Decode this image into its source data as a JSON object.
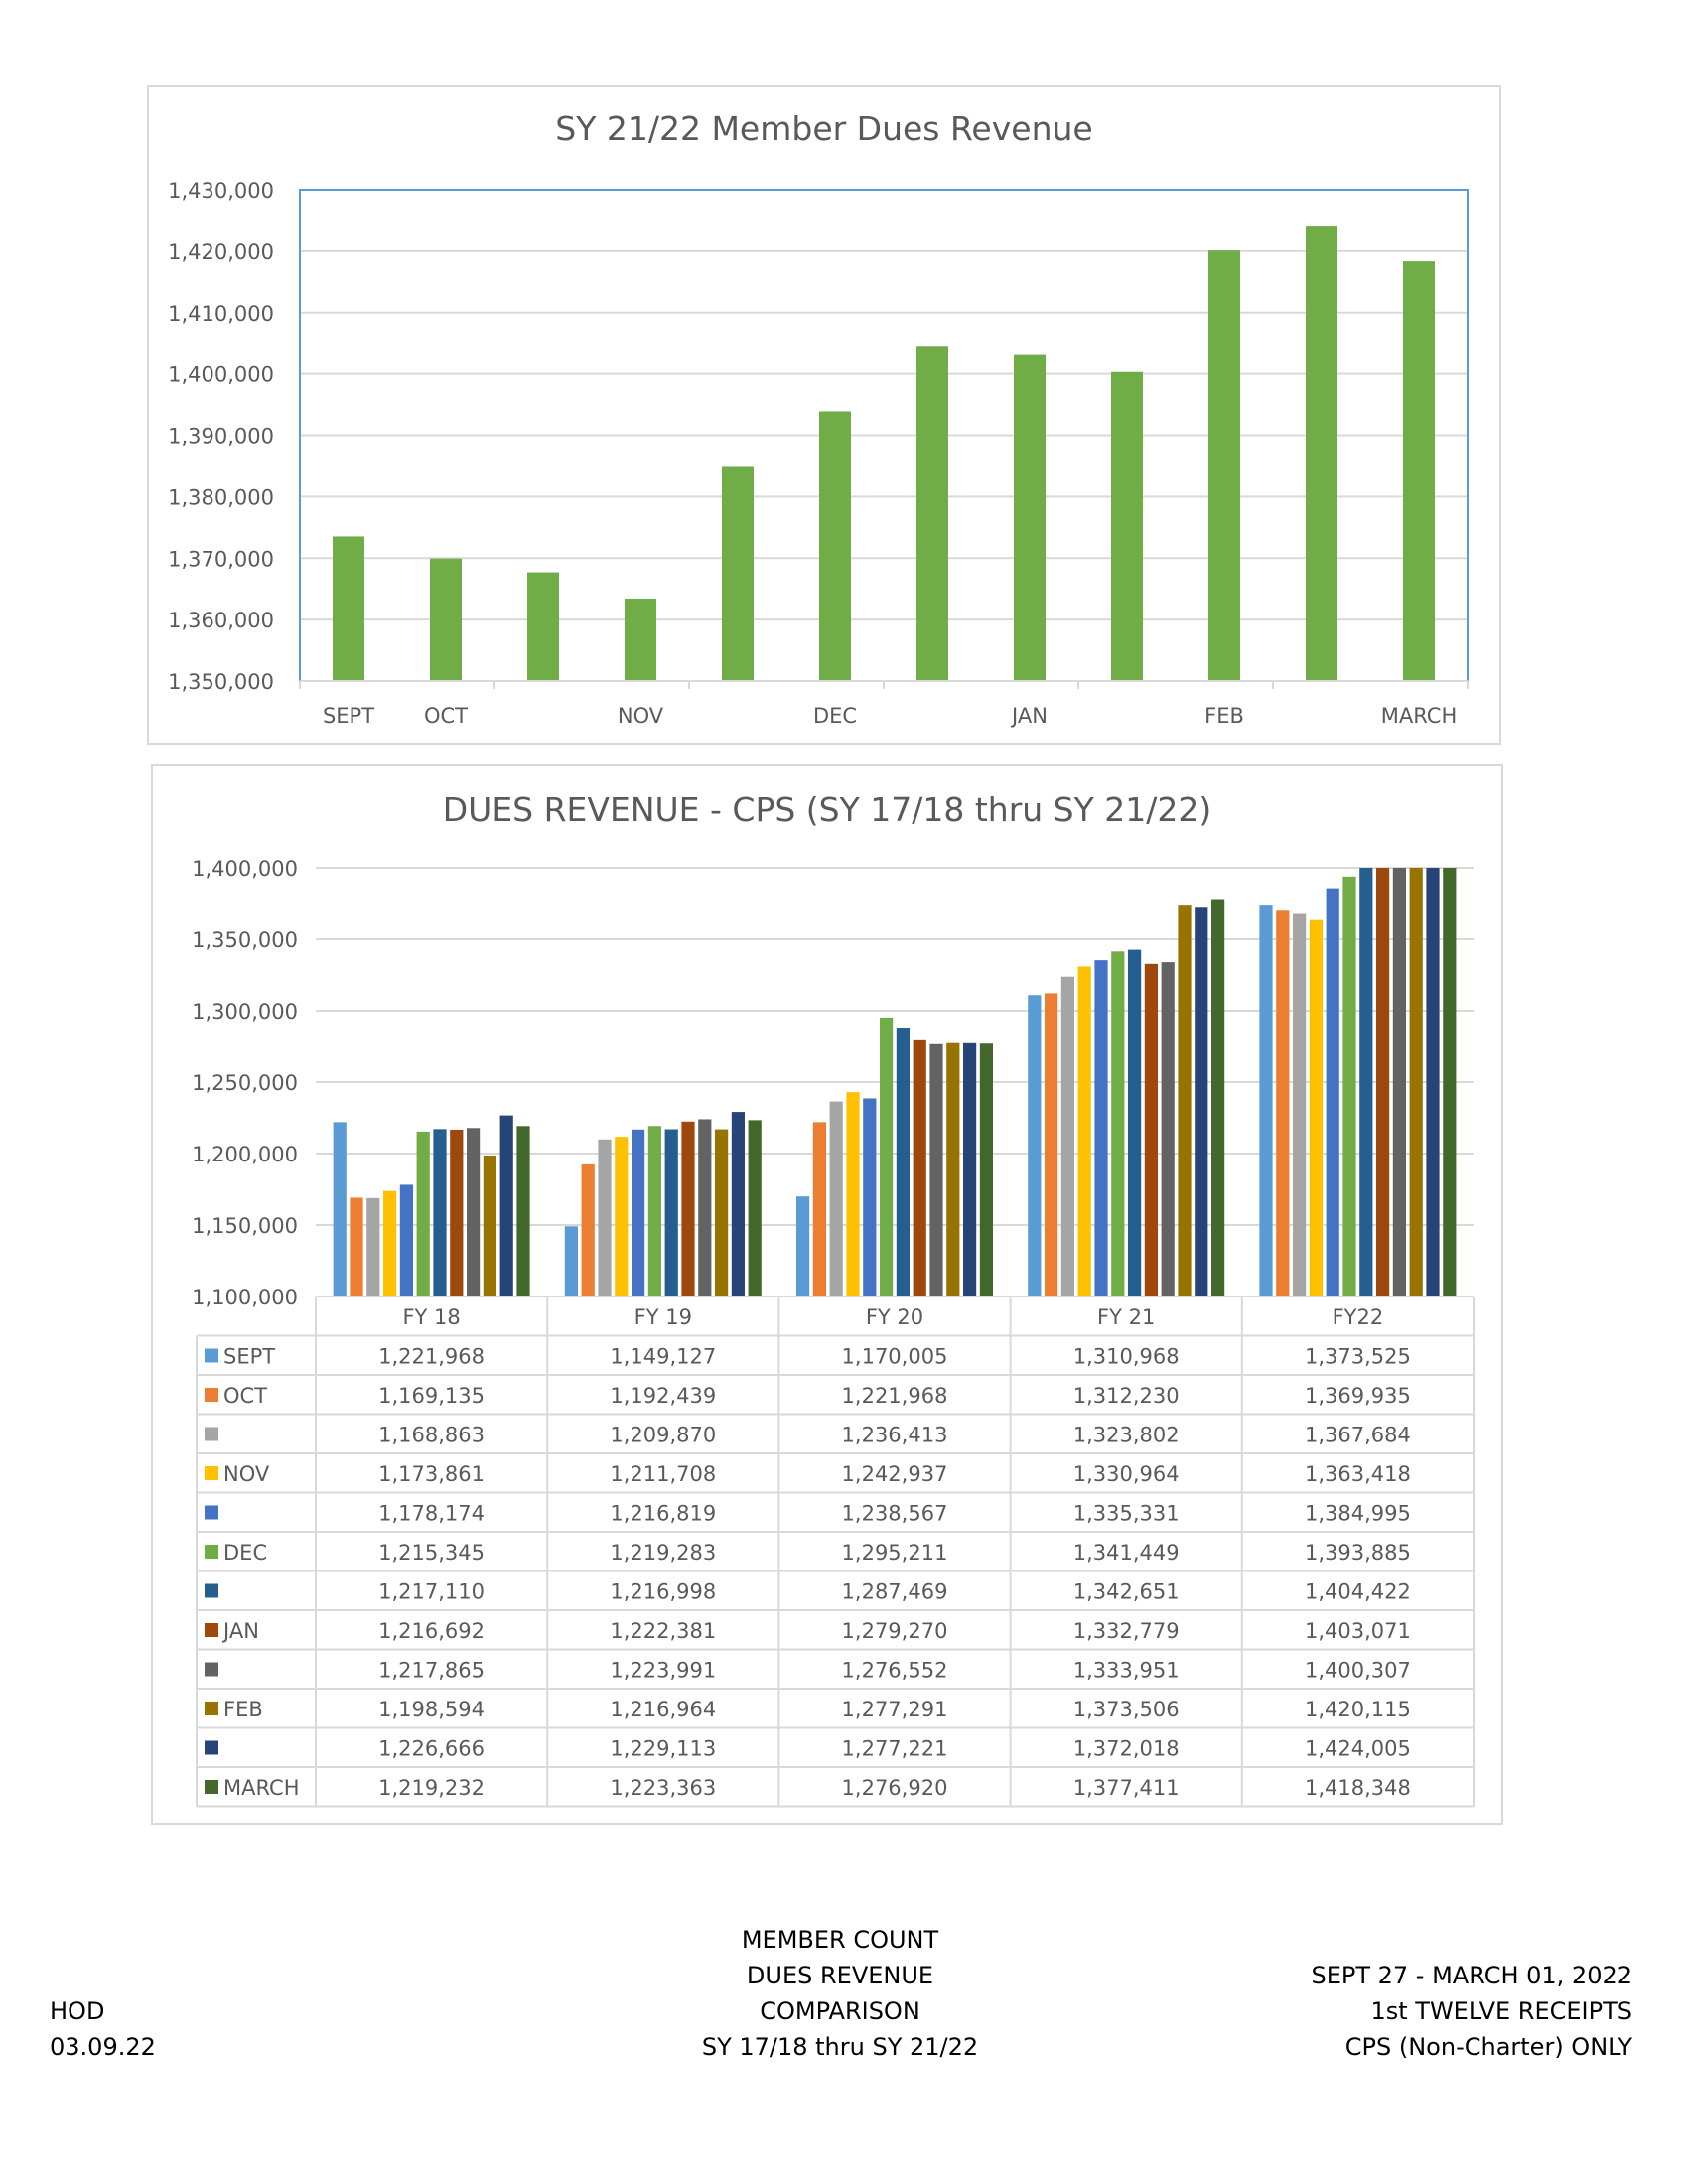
{
  "chart_data": [
    {
      "type": "bar",
      "title": "SY 21/22 Member Dues Revenue",
      "categories": [
        "SEPT",
        "OCT",
        "",
        "NOV",
        "",
        "DEC",
        "",
        "JAN",
        "",
        "FEB",
        "",
        "MARCH"
      ],
      "values": [
        1373525,
        1369935,
        1367684,
        1363418,
        1384995,
        1393885,
        1404422,
        1403071,
        1400307,
        1420115,
        1424005,
        1418348
      ],
      "ylim": [
        1350000,
        1430000
      ],
      "yticks": [
        "1,350,000",
        "1,360,000",
        "1,370,000",
        "1,380,000",
        "1,390,000",
        "1,400,000",
        "1,410,000",
        "1,420,000",
        "1,430,000"
      ],
      "xlabel": "",
      "ylabel": "",
      "bar_color": "#70ad47",
      "grid": true
    },
    {
      "type": "bar",
      "title": "DUES REVENUE - CPS (SY 17/18 thru SY 21/22)",
      "categories": [
        "FY 18",
        "FY 19",
        "FY 20",
        "FY 21",
        "FY22"
      ],
      "ylim": [
        1100000,
        1400000
      ],
      "yticks": [
        "1,100,000",
        "1,150,000",
        "1,200,000",
        "1,250,000",
        "1,300,000",
        "1,350,000",
        "1,400,000"
      ],
      "grid": true,
      "legend_placement": "data-table-left",
      "series": [
        {
          "name": "SEPT",
          "color": "#5b9bd5",
          "values": [
            1221968,
            1149127,
            1170005,
            1310968,
            1373525
          ],
          "labels": [
            "1,221,968",
            "1,149,127",
            "1,170,005",
            "1,310,968",
            "1,373,525"
          ]
        },
        {
          "name": "OCT",
          "color": "#ed7d31",
          "values": [
            1169135,
            1192439,
            1221968,
            1312230,
            1369935
          ],
          "labels": [
            "1,169,135",
            "1,192,439",
            "1,221,968",
            "1,312,230",
            "1,369,935"
          ]
        },
        {
          "name": "",
          "color": "#a5a5a5",
          "values": [
            1168863,
            1209870,
            1236413,
            1323802,
            1367684
          ],
          "labels": [
            "1,168,863",
            "1,209,870",
            "1,236,413",
            "1,323,802",
            "1,367,684"
          ]
        },
        {
          "name": "NOV",
          "color": "#ffc000",
          "values": [
            1173861,
            1211708,
            1242937,
            1330964,
            1363418
          ],
          "labels": [
            "1,173,861",
            "1,211,708",
            "1,242,937",
            "1,330,964",
            "1,363,418"
          ]
        },
        {
          "name": "",
          "color": "#4472c4",
          "values": [
            1178174,
            1216819,
            1238567,
            1335331,
            1384995
          ],
          "labels": [
            "1,178,174",
            "1,216,819",
            "1,238,567",
            "1,335,331",
            "1,384,995"
          ]
        },
        {
          "name": "DEC",
          "color": "#70ad47",
          "values": [
            1215345,
            1219283,
            1295211,
            1341449,
            1393885
          ],
          "labels": [
            "1,215,345",
            "1,219,283",
            "1,295,211",
            "1,341,449",
            "1,393,885"
          ]
        },
        {
          "name": "",
          "color": "#255e91",
          "values": [
            1217110,
            1216998,
            1287469,
            1342651,
            1404422
          ],
          "labels": [
            "1,217,110",
            "1,216,998",
            "1,287,469",
            "1,342,651",
            "1,404,422"
          ]
        },
        {
          "name": "JAN",
          "color": "#9e480e",
          "values": [
            1216692,
            1222381,
            1279270,
            1332779,
            1403071
          ],
          "labels": [
            "1,216,692",
            "1,222,381",
            "1,279,270",
            "1,332,779",
            "1,403,071"
          ]
        },
        {
          "name": "",
          "color": "#636363",
          "values": [
            1217865,
            1223991,
            1276552,
            1333951,
            1400307
          ],
          "labels": [
            "1,217,865",
            "1,223,991",
            "1,276,552",
            "1,333,951",
            "1,400,307"
          ]
        },
        {
          "name": "FEB",
          "color": "#997300",
          "values": [
            1198594,
            1216964,
            1277291,
            1373506,
            1420115
          ],
          "labels": [
            "1,198,594",
            "1,216,964",
            "1,277,291",
            "1,373,506",
            "1,420,115"
          ]
        },
        {
          "name": "",
          "color": "#264478",
          "values": [
            1226666,
            1229113,
            1277221,
            1372018,
            1424005
          ],
          "labels": [
            "1,226,666",
            "1,229,113",
            "1,277,221",
            "1,372,018",
            "1,424,005"
          ]
        },
        {
          "name": "MARCH",
          "color": "#43682b",
          "values": [
            1219232,
            1223363,
            1276920,
            1377411,
            1418348
          ],
          "labels": [
            "1,219,232",
            "1,223,363",
            "1,276,920",
            "1,377,411",
            "1,418,348"
          ]
        }
      ]
    }
  ],
  "footer": {
    "left": [
      "HOD",
      "03.09.22"
    ],
    "center": [
      "MEMBER COUNT",
      "DUES REVENUE",
      "COMPARISON",
      "SY 17/18 thru SY 21/22"
    ],
    "right": [
      "SEPT  27 - MARCH 01, 2022",
      "1st TWELVE  RECEIPTS",
      "CPS (Non-Charter) ONLY"
    ]
  }
}
